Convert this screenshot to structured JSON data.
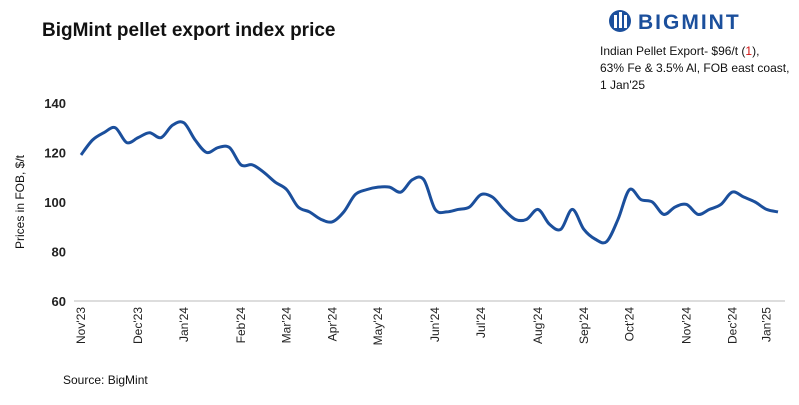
{
  "brand": "BIGMINT",
  "annotation": {
    "line1": [
      "Indian Pellet Export- $96/t (",
      "1",
      "),"
    ],
    "line2": "63% Fe & 3.5% Al, FOB east coast,",
    "line3": "1 Jan'25"
  },
  "source": "Source: BigMint",
  "chart_data": {
    "type": "line",
    "title": "BigMint pellet export index price",
    "y_label": "Prices in FOB, $/t",
    "categories": [
      "Nov'23",
      null,
      null,
      null,
      null,
      "Dec'23",
      null,
      null,
      null,
      "Jan'24",
      null,
      null,
      null,
      null,
      "Feb'24",
      null,
      null,
      null,
      "Mar'24",
      null,
      null,
      null,
      "Apr'24",
      null,
      null,
      null,
      "May'24",
      null,
      null,
      null,
      null,
      "Jun'24",
      null,
      null,
      null,
      "Jul'24",
      null,
      null,
      null,
      null,
      "Aug'24",
      null,
      null,
      null,
      "Sep'24",
      null,
      null,
      null,
      "Oct'24",
      null,
      null,
      null,
      null,
      "Nov'24",
      null,
      null,
      null,
      "Dec'24",
      null,
      null,
      "Jan'25",
      null
    ],
    "series": [
      {
        "name": "BigMint pellet export index price",
        "color": "#1b4f9c",
        "values": [
          119,
          125,
          128,
          130,
          124,
          126,
          128,
          126,
          131,
          132,
          125,
          120,
          122,
          122,
          115,
          115,
          112,
          108,
          105,
          98,
          96,
          93,
          92,
          96,
          103,
          105,
          106,
          106,
          104,
          109,
          109,
          97,
          96,
          97,
          98,
          103,
          102,
          97,
          93,
          93,
          97,
          91,
          89,
          97,
          89,
          85,
          84,
          93,
          105,
          101,
          100,
          95,
          98,
          99,
          95,
          97,
          99,
          104,
          102,
          100,
          97,
          96
        ]
      }
    ],
    "ylim": [
      60,
      140
    ],
    "yticks": [
      60,
      80,
      100,
      120,
      140
    ],
    "grid": false
  }
}
